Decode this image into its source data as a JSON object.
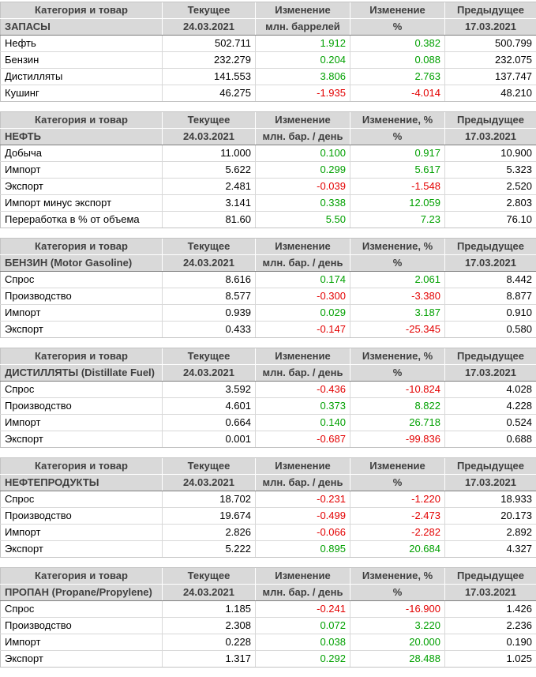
{
  "colors": {
    "positive": "#00A000",
    "negative": "#E30000",
    "header_bg": "#D9D9D9",
    "header_text": "#3F3F3F",
    "body_text": "#000000"
  },
  "tables": [
    {
      "id": "zapasy",
      "header": [
        "Категория и товар",
        "Текущее",
        "Изменение",
        "Изменение",
        "Предыдущее"
      ],
      "subheader": [
        "ЗАПАСЫ",
        "24.03.2021",
        "млн. баррелей",
        "%",
        "17.03.2021"
      ],
      "rows": [
        {
          "label": "Нефть",
          "current": "502.711",
          "change": "1.912",
          "change_pct": "0.382",
          "previous": "500.799"
        },
        {
          "label": "Бензин",
          "current": "232.279",
          "change": "0.204",
          "change_pct": "0.088",
          "previous": "232.075"
        },
        {
          "label": "Дистилляты",
          "current": "141.553",
          "change": "3.806",
          "change_pct": "2.763",
          "previous": "137.747"
        },
        {
          "label": "Кушинг",
          "current": "46.275",
          "change": "-1.935",
          "change_pct": "-4.014",
          "previous": "48.210"
        }
      ]
    },
    {
      "id": "neft",
      "header": [
        "Категория и товар",
        "Текущее",
        "Изменение",
        "Изменение, %",
        "Предыдущее"
      ],
      "subheader": [
        "НЕФТЬ",
        "24.03.2021",
        "млн. бар. / день",
        "%",
        "17.03.2021"
      ],
      "rows": [
        {
          "label": "Добыча",
          "current": "11.000",
          "change": "0.100",
          "change_pct": "0.917",
          "previous": "10.900"
        },
        {
          "label": "Импорт",
          "current": "5.622",
          "change": "0.299",
          "change_pct": "5.617",
          "previous": "5.323"
        },
        {
          "label": "Экспорт",
          "current": "2.481",
          "change": "-0.039",
          "change_pct": "-1.548",
          "previous": "2.520"
        },
        {
          "label": "Импорт минус экспорт",
          "current": "3.141",
          "change": "0.338",
          "change_pct": "12.059",
          "previous": "2.803"
        },
        {
          "label": "Переработка в % от объема",
          "current": "81.60",
          "change": "5.50",
          "change_pct": "7.23",
          "previous": "76.10"
        }
      ]
    },
    {
      "id": "benzin",
      "header": [
        "Категория и товар",
        "Текущее",
        "Изменение",
        "Изменение, %",
        "Предыдущее"
      ],
      "subheader": [
        "БЕНЗИН (Motor Gasoline)",
        "24.03.2021",
        "млн. бар. / день",
        "%",
        "17.03.2021"
      ],
      "rows": [
        {
          "label": "Спрос",
          "current": "8.616",
          "change": "0.174",
          "change_pct": "2.061",
          "previous": "8.442"
        },
        {
          "label": "Производство",
          "current": "8.577",
          "change": "-0.300",
          "change_pct": "-3.380",
          "previous": "8.877"
        },
        {
          "label": "Импорт",
          "current": "0.939",
          "change": "0.029",
          "change_pct": "3.187",
          "previous": "0.910"
        },
        {
          "label": "Экспорт",
          "current": "0.433",
          "change": "-0.147",
          "change_pct": "-25.345",
          "previous": "0.580"
        }
      ]
    },
    {
      "id": "distillyaty",
      "header": [
        "Категория и товар",
        "Текущее",
        "Изменение",
        "Изменение, %",
        "Предыдущее"
      ],
      "subheader": [
        "ДИСТИЛЛЯТЫ (Distillate Fuel)",
        "24.03.2021",
        "млн. бар. / день",
        "%",
        "17.03.2021"
      ],
      "rows": [
        {
          "label": "Спрос",
          "current": "3.592",
          "change": "-0.436",
          "change_pct": "-10.824",
          "previous": "4.028"
        },
        {
          "label": "Производство",
          "current": "4.601",
          "change": "0.373",
          "change_pct": "8.822",
          "previous": "4.228"
        },
        {
          "label": "Импорт",
          "current": "0.664",
          "change": "0.140",
          "change_pct": "26.718",
          "previous": "0.524"
        },
        {
          "label": "Экспорт",
          "current": "0.001",
          "change": "-0.687",
          "change_pct": "-99.836",
          "previous": "0.688"
        }
      ]
    },
    {
      "id": "nefteprodukty",
      "header": [
        "Категория и товар",
        "Текущее",
        "Изменение",
        "Изменение",
        "Предыдущее"
      ],
      "subheader": [
        "НЕФТЕПРОДУКТЫ",
        "24.03.2021",
        "млн. бар. / день",
        "%",
        "17.03.2021"
      ],
      "rows": [
        {
          "label": "Спрос",
          "current": "18.702",
          "change": "-0.231",
          "change_pct": "-1.220",
          "previous": "18.933"
        },
        {
          "label": "Производство",
          "current": "19.674",
          "change": "-0.499",
          "change_pct": "-2.473",
          "previous": "20.173"
        },
        {
          "label": "Импорт",
          "current": "2.826",
          "change": "-0.066",
          "change_pct": "-2.282",
          "previous": "2.892"
        },
        {
          "label": "Экспорт",
          "current": "5.222",
          "change": "0.895",
          "change_pct": "20.684",
          "previous": "4.327"
        }
      ]
    },
    {
      "id": "propan",
      "header": [
        "Категория и товар",
        "Текущее",
        "Изменение",
        "Изменение, %",
        "Предыдущее"
      ],
      "subheader": [
        "ПРОПАН (Propane/Propylene)",
        "24.03.2021",
        "млн. бар. / день",
        "%",
        "17.03.2021"
      ],
      "rows": [
        {
          "label": "Спрос",
          "current": "1.185",
          "change": "-0.241",
          "change_pct": "-16.900",
          "previous": "1.426"
        },
        {
          "label": "Производство",
          "current": "2.308",
          "change": "0.072",
          "change_pct": "3.220",
          "previous": "2.236"
        },
        {
          "label": "Импорт",
          "current": "0.228",
          "change": "0.038",
          "change_pct": "20.000",
          "previous": "0.190"
        },
        {
          "label": "Экспорт",
          "current": "1.317",
          "change": "0.292",
          "change_pct": "28.488",
          "previous": "1.025"
        }
      ]
    }
  ]
}
